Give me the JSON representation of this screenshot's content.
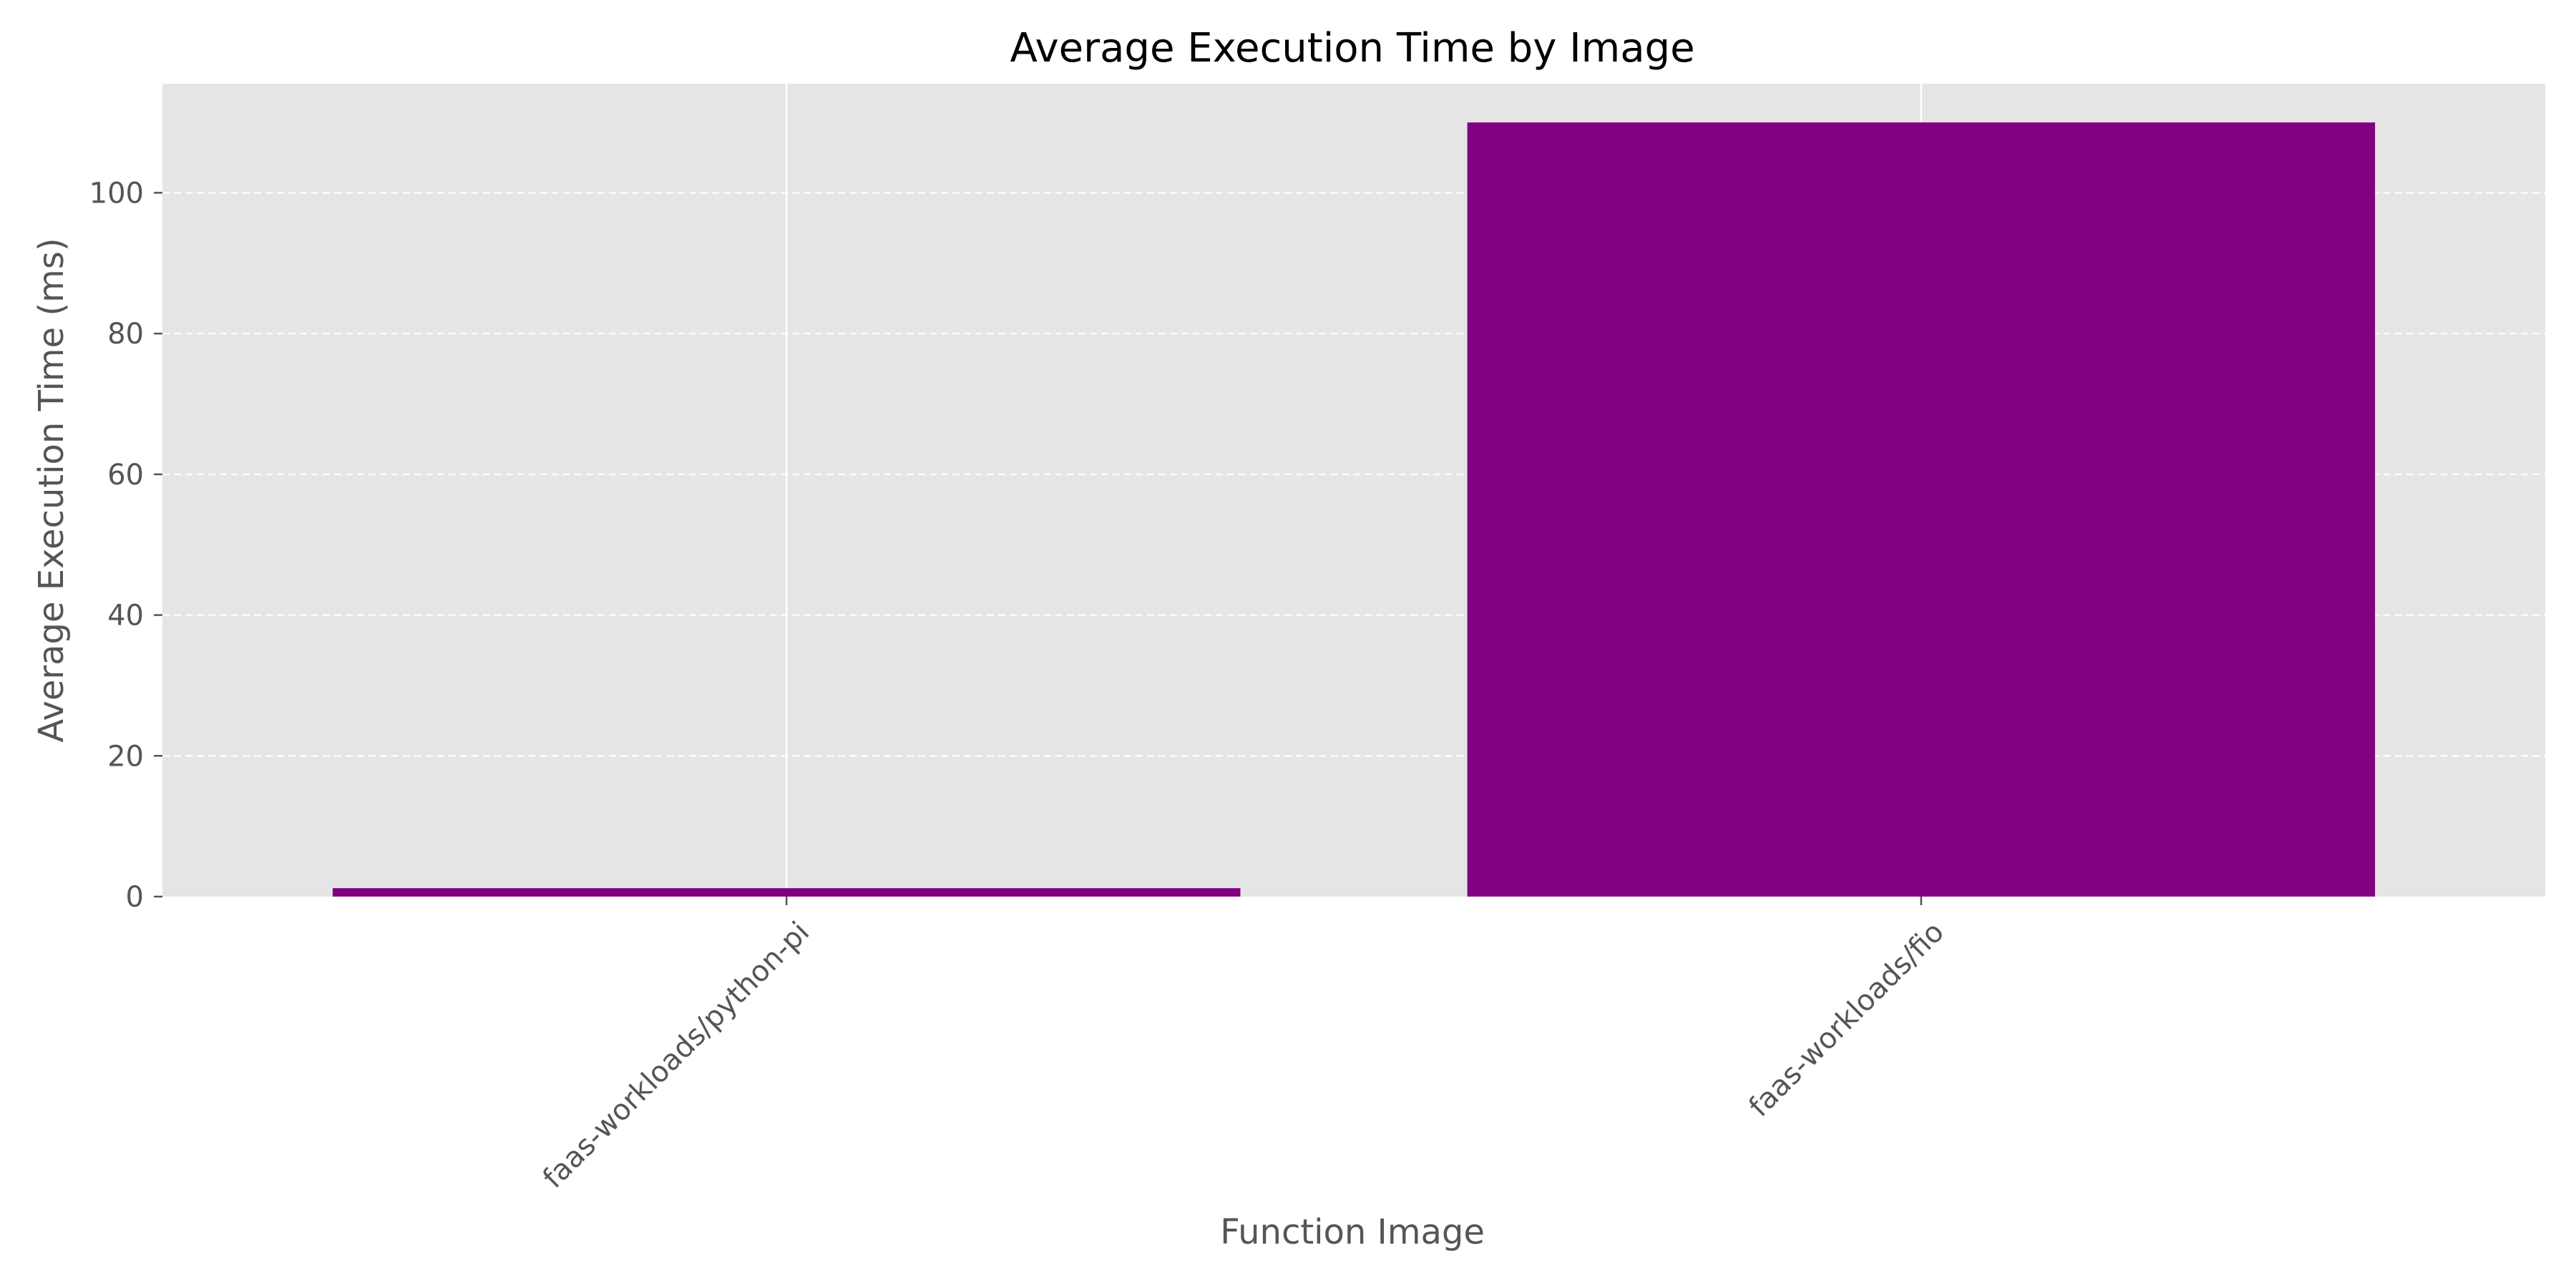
{
  "chart_data": {
    "type": "bar",
    "title": "Average Execution Time by Image",
    "xlabel": "Function Image",
    "ylabel": "Average Execution Time (ms)",
    "categories": [
      "faas-workloads/python-pi",
      "faas-workloads/fio"
    ],
    "values": [
      1.2,
      110.0
    ],
    "ylim": [
      0,
      115.5
    ],
    "yticks": [
      0,
      20,
      40,
      60,
      80,
      100
    ],
    "grid": {
      "y": "dashed",
      "x": "solid"
    },
    "legend": "none",
    "colors": {
      "bar": "#800080",
      "plot_background": "#e5e5e5",
      "grid": "#ffffff"
    }
  }
}
